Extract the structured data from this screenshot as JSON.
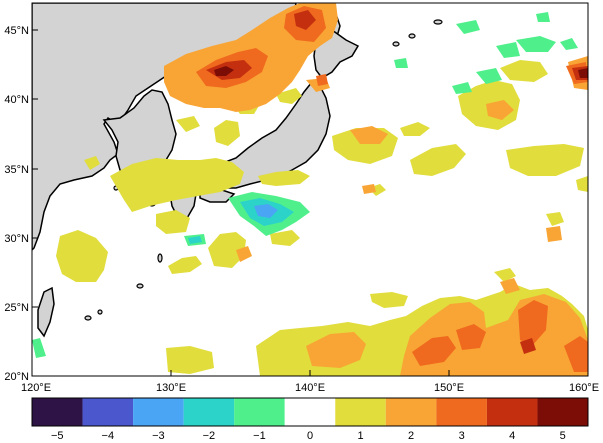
{
  "map": {
    "lat_labels": [
      "45°N",
      "40°N",
      "35°N",
      "30°N",
      "25°N",
      "20°N"
    ],
    "lon_labels": [
      "120°E",
      "130°E",
      "140°E",
      "150°E",
      "160°E"
    ],
    "extent": {
      "lon": [
        120,
        160
      ],
      "lat": [
        20,
        47
      ]
    },
    "land_color": "#d3d3d3",
    "ocean_color": "#ffffff"
  },
  "colorbar": {
    "labels": [
      "−5",
      "−4",
      "−3",
      "−2",
      "−1",
      "0",
      "1",
      "2",
      "3",
      "4",
      "5"
    ],
    "colors": [
      "#2e1346",
      "#4b57cc",
      "#4ba5f5",
      "#2cd3c8",
      "#4ff08c",
      "#ffffff",
      "#e0dd3c",
      "#f9a535",
      "#ef6a1e",
      "#c42f0f",
      "#7c0d06"
    ]
  }
}
